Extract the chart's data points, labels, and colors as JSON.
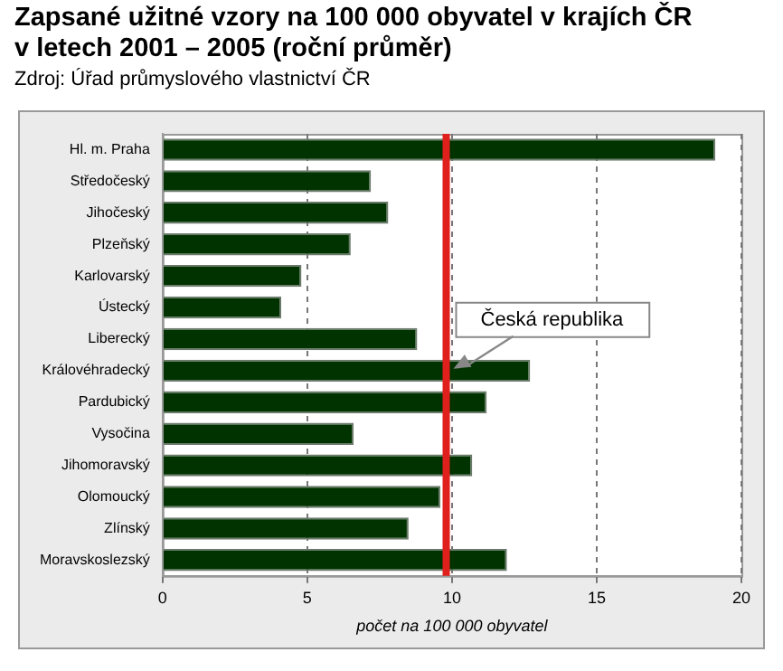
{
  "chart_data": {
    "type": "bar",
    "orientation": "horizontal",
    "title": "Zapsané užitné vzory na 100 000 obyvatel v krajích ČR\nv letech 2001 – 2005 (roční průměr)",
    "subtitle": "Zdroj: Úřad průmyslového vlastnictví ČR",
    "xlabel": "počet na 100 000 obyvatel",
    "categories": [
      "Hl. m. Praha",
      "Středočeský",
      "Jihočeský",
      "Plzeňský",
      "Karlovarský",
      "Ústecký",
      "Liberecký",
      "Královéhradecký",
      "Pardubický",
      "Vysočina",
      "Jihomoravský",
      "Olomoucký",
      "Zlínský",
      "Moravskoslezský"
    ],
    "values": [
      19.1,
      7.2,
      7.8,
      6.5,
      4.8,
      4.1,
      8.8,
      12.7,
      11.2,
      6.6,
      10.7,
      9.6,
      8.5,
      11.9
    ],
    "color": "#003300",
    "xlim": [
      0,
      20
    ],
    "xticks": [
      0,
      5,
      10,
      15,
      20
    ],
    "grid": "x",
    "legend": false,
    "ref_lines": [
      {
        "axis": "x",
        "value": 9.8,
        "label": "Česká republika",
        "color": "#e0201c"
      }
    ]
  }
}
